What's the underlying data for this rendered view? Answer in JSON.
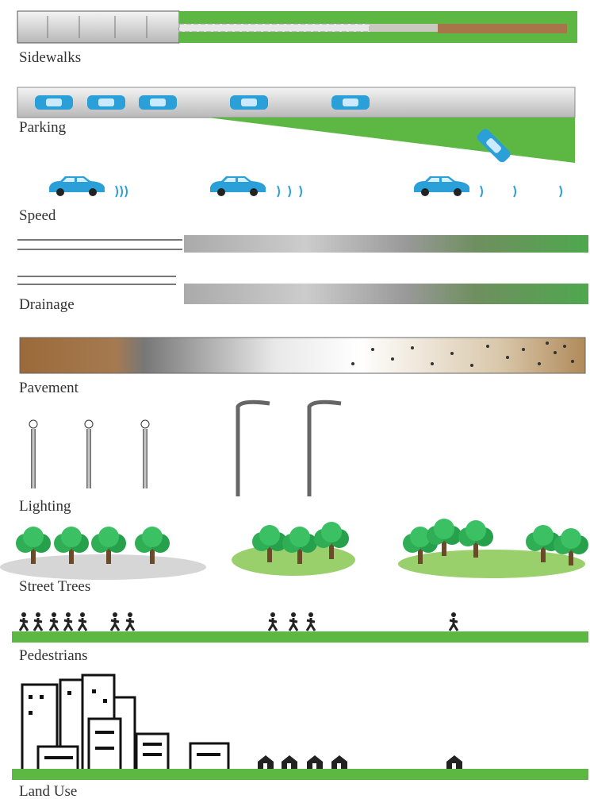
{
  "rows": [
    {
      "label": "Sidewalks"
    },
    {
      "label": "Parking"
    },
    {
      "label": "Speed"
    },
    {
      "label": "Drainage"
    },
    {
      "label": "Pavement"
    },
    {
      "label": "Lighting"
    },
    {
      "label": "Street Trees"
    },
    {
      "label": "Pedestrians"
    },
    {
      "label": "Land Use"
    }
  ]
}
